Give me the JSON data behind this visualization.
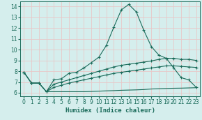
{
  "xlabel": "Humidex (Indice chaleur)",
  "xlim": [
    -0.5,
    23.5
  ],
  "ylim": [
    5.7,
    14.5
  ],
  "xticks": [
    0,
    1,
    2,
    3,
    4,
    5,
    6,
    7,
    8,
    9,
    10,
    11,
    12,
    13,
    14,
    15,
    16,
    17,
    18,
    19,
    20,
    21,
    22,
    23
  ],
  "yticks": [
    6,
    7,
    8,
    9,
    10,
    11,
    12,
    13,
    14
  ],
  "bg_color": "#d5eeed",
  "line_color": "#1a6b5a",
  "grid_color": "#e8c8c8",
  "curve1_x": [
    0,
    1,
    2,
    3,
    4,
    5,
    6,
    7,
    8,
    9,
    10,
    11,
    12,
    13,
    14,
    15,
    16,
    17,
    18,
    19,
    20,
    21,
    22,
    23
  ],
  "curve1_y": [
    7.9,
    6.9,
    6.9,
    6.1,
    7.2,
    7.3,
    7.8,
    7.9,
    8.3,
    8.8,
    9.3,
    10.4,
    12.1,
    13.7,
    14.2,
    13.5,
    11.8,
    10.3,
    9.5,
    9.2,
    8.3,
    7.4,
    7.2,
    6.5
  ],
  "curve2_x": [
    0,
    1,
    2,
    3,
    4,
    5,
    6,
    7,
    8,
    9,
    10,
    11,
    12,
    13,
    14,
    15,
    16,
    17,
    18,
    19,
    20,
    21,
    22,
    23
  ],
  "curve2_y": [
    7.9,
    6.9,
    6.9,
    6.1,
    6.8,
    7.0,
    7.2,
    7.4,
    7.6,
    7.8,
    8.0,
    8.2,
    8.4,
    8.55,
    8.65,
    8.75,
    8.85,
    8.95,
    9.1,
    9.2,
    9.2,
    9.1,
    9.1,
    9.0
  ],
  "curve3_x": [
    0,
    1,
    2,
    3,
    4,
    5,
    6,
    7,
    8,
    9,
    10,
    11,
    12,
    13,
    14,
    15,
    16,
    17,
    18,
    19,
    20,
    21,
    22,
    23
  ],
  "curve3_y": [
    7.9,
    6.9,
    6.9,
    6.1,
    6.5,
    6.7,
    6.9,
    7.05,
    7.2,
    7.35,
    7.5,
    7.65,
    7.8,
    7.9,
    8.0,
    8.1,
    8.2,
    8.3,
    8.4,
    8.5,
    8.5,
    8.45,
    8.4,
    8.35
  ],
  "curve4_x": [
    3,
    4,
    5,
    6,
    7,
    8,
    9,
    10,
    11,
    12,
    13,
    14,
    15,
    16,
    17,
    18,
    19,
    20,
    21,
    22,
    23
  ],
  "curve4_y": [
    6.1,
    6.1,
    6.1,
    6.1,
    6.1,
    6.1,
    6.12,
    6.15,
    6.18,
    6.2,
    6.23,
    6.25,
    6.27,
    6.3,
    6.35,
    6.38,
    6.4,
    6.42,
    6.43,
    6.45,
    6.47
  ]
}
